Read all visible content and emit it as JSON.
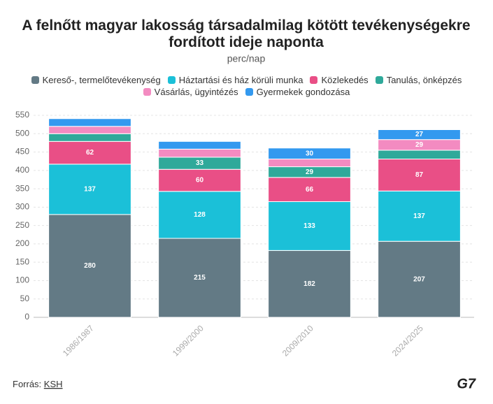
{
  "chart_data": {
    "type": "stacked_bar",
    "title": "A felnőtt magyar lakosság társadalmilag kötött tevékenységekre fordított ideje naponta",
    "subtitle": "perc/nap",
    "categories": [
      "1986/1987",
      "1999/2000",
      "2009/2010",
      "2024/2025"
    ],
    "series": [
      {
        "name": "Kereső-, termelőtevékenység",
        "color": "#637a85",
        "values": [
          280,
          215,
          182,
          207
        ]
      },
      {
        "name": "Háztartási és ház körüli munka",
        "color": "#1bc0d8",
        "values": [
          137,
          128,
          133,
          137
        ]
      },
      {
        "name": "Közlekedés",
        "color": "#e94f86",
        "values": [
          62,
          60,
          66,
          87
        ]
      },
      {
        "name": "Tanulás, önképzés",
        "color": "#2fa99a",
        "values": [
          21,
          33,
          29,
          24
        ]
      },
      {
        "name": "Vásárlás, ügyintézés",
        "color": "#f38bc1",
        "values": [
          20,
          22,
          21,
          29
        ]
      },
      {
        "name": "Gyermekek gondozása",
        "color": "#3399ef",
        "values": [
          21,
          21,
          30,
          27
        ]
      }
    ],
    "ylim": [
      0,
      550
    ],
    "yticks": [
      0,
      50,
      100,
      150,
      200,
      250,
      300,
      350,
      400,
      450,
      500,
      550
    ],
    "grid": true
  },
  "source_label": "Forrás:",
  "source": "KSH",
  "logo": "G7"
}
